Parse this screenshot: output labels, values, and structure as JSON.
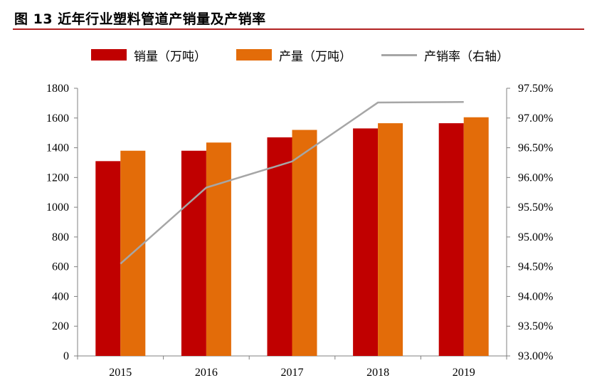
{
  "title": "图 13 近年行业塑料管道产销量及产销率",
  "colors": {
    "sales": "#c00000",
    "production": "#e36c09",
    "rate": "#a6a6a6",
    "axis": "#808080",
    "title_rule": "#b22222"
  },
  "legend": {
    "sales": "销量（万吨）",
    "production": "产量（万吨）",
    "rate": "产销率（右轴）"
  },
  "chart_data": {
    "type": "bar",
    "categories": [
      "2015",
      "2016",
      "2017",
      "2018",
      "2019"
    ],
    "series": [
      {
        "name": "销量（万吨）",
        "kind": "bar",
        "axis": "left",
        "values": [
          1310,
          1380,
          1470,
          1530,
          1565
        ]
      },
      {
        "name": "产量（万吨）",
        "kind": "bar",
        "axis": "left",
        "values": [
          1380,
          1435,
          1520,
          1565,
          1605
        ]
      },
      {
        "name": "产销率（右轴）",
        "kind": "line",
        "axis": "right",
        "values": [
          94.55,
          95.83,
          96.27,
          97.26,
          97.27
        ]
      }
    ],
    "y_left": {
      "min": 0,
      "max": 1800,
      "step": 200,
      "ticks": [
        "0",
        "200",
        "400",
        "600",
        "800",
        "1000",
        "1200",
        "1400",
        "1600",
        "1800"
      ]
    },
    "y_right": {
      "min": 93.0,
      "max": 97.5,
      "step": 0.5,
      "ticks": [
        "93.00%",
        "93.50%",
        "94.00%",
        "94.50%",
        "95.00%",
        "95.50%",
        "96.00%",
        "96.50%",
        "97.00%",
        "97.50%"
      ]
    },
    "legend_position": "top",
    "grid": false
  }
}
